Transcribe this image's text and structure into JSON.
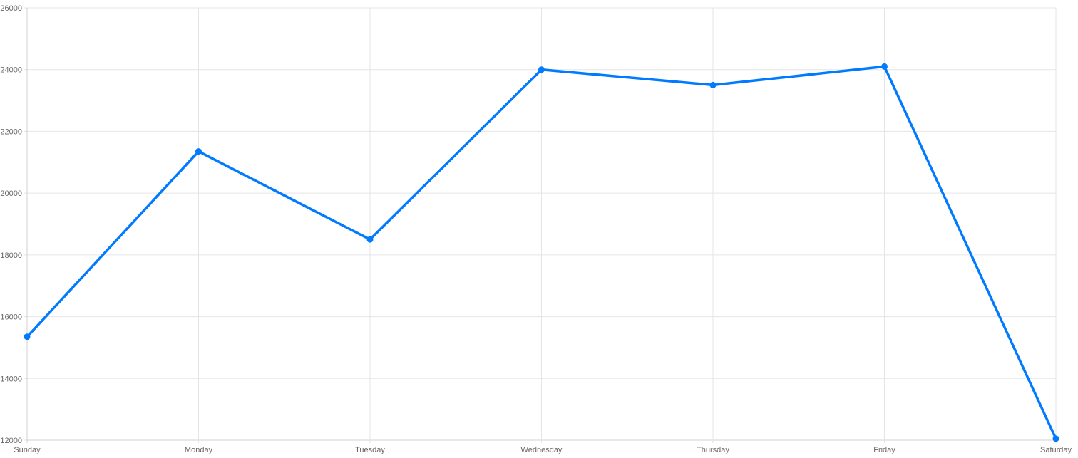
{
  "chart_data": {
    "type": "line",
    "title": "",
    "xlabel": "",
    "ylabel": "",
    "categories": [
      "Sunday",
      "Monday",
      "Tuesday",
      "Wednesday",
      "Thursday",
      "Friday",
      "Saturday"
    ],
    "series": [
      {
        "values": [
          15350,
          21350,
          18500,
          24000,
          23500,
          24100,
          12050
        ],
        "color": "#007bff"
      }
    ],
    "ylim": [
      12000,
      26000
    ],
    "yticks": [
      "12000",
      "14000",
      "16000",
      "18000",
      "20000",
      "22000",
      "24000",
      "26000"
    ],
    "grid": true,
    "legend": "none"
  }
}
